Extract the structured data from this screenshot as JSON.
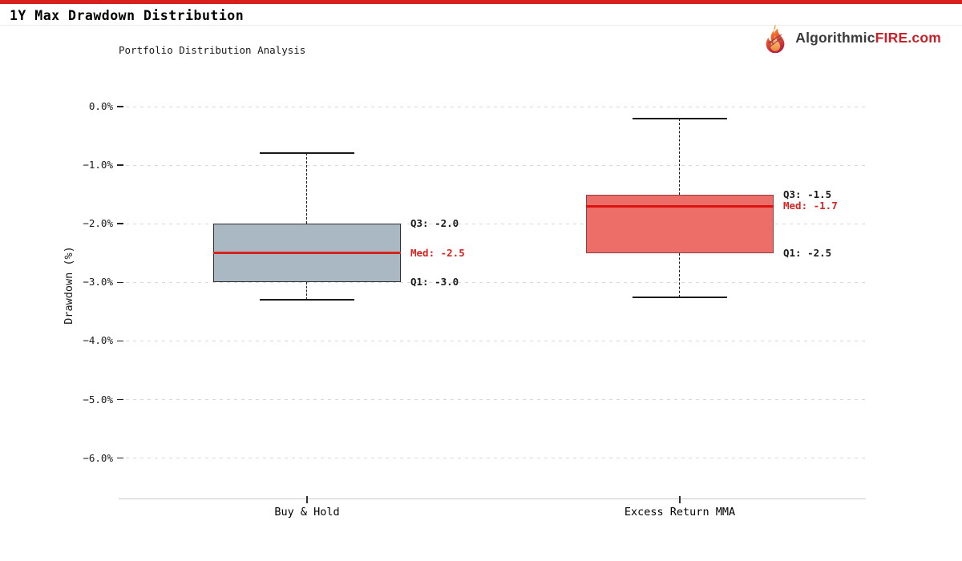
{
  "page": {
    "title": "1Y Max Drawdown Distribution",
    "top_bar_color": "#d8201e"
  },
  "brand": {
    "name_black": "Algorithmic",
    "name_red": "FIRE",
    "suffix": ".com",
    "accent_color": "#c9202a"
  },
  "chart_data": {
    "type": "boxplot",
    "title": "1Y Max Drawdown Distribution",
    "subtitle": "Portfolio Distribution Analysis",
    "ylabel": "Drawdown (%)",
    "ylim": [
      -6.7,
      0.3
    ],
    "grid": true,
    "yticks": [
      {
        "value": 0,
        "label": "0.0%"
      },
      {
        "value": -1,
        "label": "−1.0%"
      },
      {
        "value": -2,
        "label": "−2.0%"
      },
      {
        "value": -3,
        "label": "−3.0%"
      },
      {
        "value": -4,
        "label": "−4.0%"
      },
      {
        "value": -5,
        "label": "−5.0%"
      },
      {
        "value": -6,
        "label": "−6.0%"
      }
    ],
    "annotation_colors": {
      "quartile": "#1a1a1a",
      "median": "#d8231f"
    },
    "categories": [
      "Buy & Hold",
      "Excess Return MMA"
    ],
    "series": [
      {
        "name": "Buy & Hold",
        "whisker_high": -0.8,
        "q3": -2.0,
        "median": -2.5,
        "q1": -3.0,
        "whisker_low": -3.3,
        "box_fill": "#a9b8c2",
        "box_border": "#2d2d2d",
        "median_color": "#d62520",
        "annotations": {
          "q3": "Q3: -2.0",
          "med": "Med: -2.5",
          "q1": "Q1: -3.0"
        }
      },
      {
        "name": "Excess Return MMA",
        "whisker_high": -0.2,
        "q3": -1.5,
        "median": -1.7,
        "q1": -2.5,
        "whisker_low": -3.25,
        "box_fill": "#ed6d68",
        "box_border": "#8e3e3e",
        "median_color": "#dd1111",
        "annotations": {
          "q3": "Q3: -1.5",
          "med": "Med: -1.7",
          "q1": "Q1: -2.5"
        }
      }
    ]
  }
}
